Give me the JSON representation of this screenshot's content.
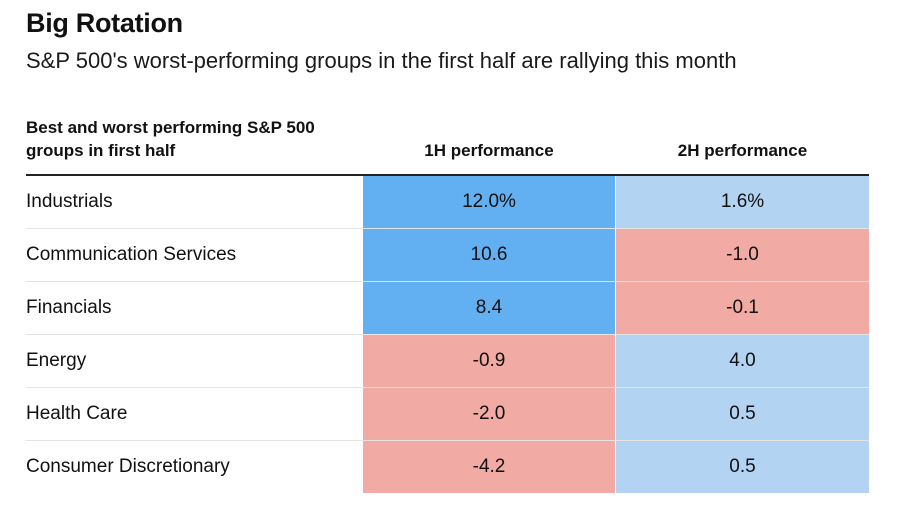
{
  "chart_data": {
    "type": "table",
    "title": "Big Rotation",
    "subtitle": "S&P 500's worst-performing groups in the first half are rallying this month",
    "columns": [
      "Best and worst performing S&P 500 groups in first half",
      "1H performance",
      "2H performance"
    ],
    "rows": [
      {
        "group": "Industrials",
        "h1": "12.0%",
        "h2": "1.6%",
        "h1_value": 12.0,
        "h2_value": 1.6
      },
      {
        "group": "Communication Services",
        "h1": "10.6",
        "h2": "-1.0",
        "h1_value": 10.6,
        "h2_value": -1.0
      },
      {
        "group": "Financials",
        "h1": "8.4",
        "h2": "-0.1",
        "h1_value": 8.4,
        "h2_value": -0.1
      },
      {
        "group": "Energy",
        "h1": "-0.9",
        "h2": "4.0",
        "h1_value": -0.9,
        "h2_value": 4.0
      },
      {
        "group": "Health Care",
        "h1": "-2.0",
        "h2": "0.5",
        "h1_value": -2.0,
        "h2_value": 0.5
      },
      {
        "group": "Consumer Discretionary",
        "h1": "-4.2",
        "h2": "0.5",
        "h1_value": -4.2,
        "h2_value": 0.5
      }
    ]
  },
  "colors": {
    "strong_positive": "#62b0f2",
    "mild_positive": "#b3d3f2",
    "negative": "#f2aaa5"
  }
}
